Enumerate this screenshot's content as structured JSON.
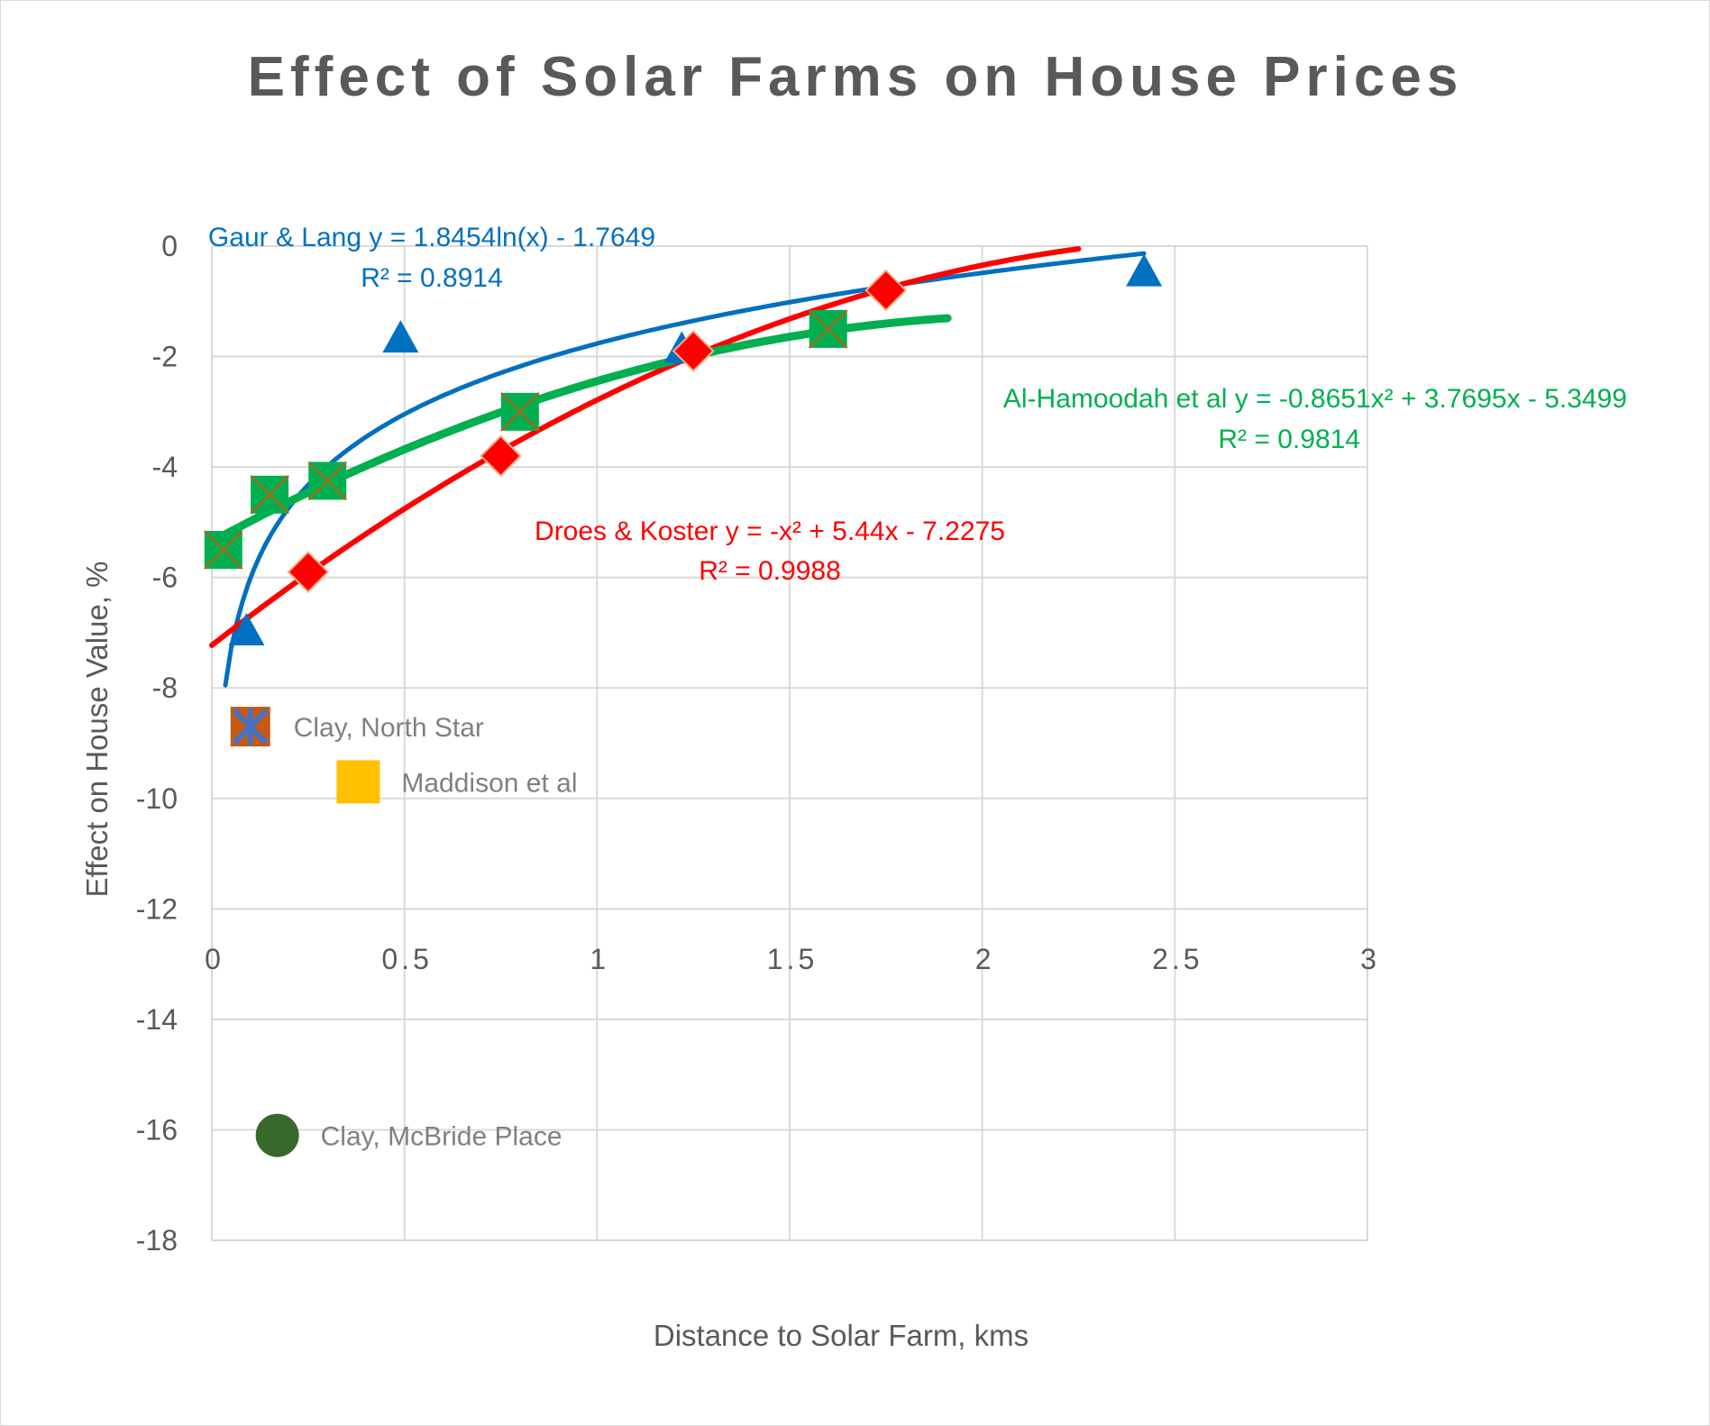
{
  "chart_data": {
    "type": "scatter",
    "title": "Effect of Solar Farms on House Prices",
    "xlabel": "Distance to Solar Farm, kms",
    "ylabel": "Effect on House Value, %",
    "xlim": [
      0,
      3
    ],
    "ylim": [
      -18,
      0
    ],
    "x_ticks": [
      "0",
      "0.5",
      "1",
      "1.5",
      "2",
      "2.5",
      "3"
    ],
    "y_ticks": [
      "0",
      "-2",
      "-4",
      "-6",
      "-8",
      "-10",
      "-12",
      "-14",
      "-16",
      "-18"
    ],
    "grid": true,
    "series": [
      {
        "name": "Gaur & Lang",
        "color": "#0070c0",
        "marker": "triangle",
        "points": [
          [
            0.09,
            -7.0
          ],
          [
            0.49,
            -1.7
          ],
          [
            1.22,
            -1.9
          ],
          [
            2.42,
            -0.5
          ]
        ],
        "trendline": {
          "kind": "log",
          "a": 1.8454,
          "b": -1.7649,
          "x_range": [
            0.035,
            2.42
          ],
          "equation": "Gaur & Lang y = 1.8454ln(x) - 1.7649",
          "r2": "R² = 0.8914"
        }
      },
      {
        "name": "Droes & Koster",
        "color": "#ff0000",
        "marker": "diamond",
        "points": [
          [
            0.25,
            -5.9
          ],
          [
            0.75,
            -3.8
          ],
          [
            1.25,
            -1.9
          ],
          [
            1.75,
            -0.8
          ]
        ],
        "trendline": {
          "kind": "poly2",
          "a": -1,
          "b": 5.44,
          "c": -7.2275,
          "x_range": [
            0,
            2.25
          ],
          "equation": "Droes & Koster y = -x² + 5.44x - 7.2275",
          "r2": "R² = 0.9988"
        }
      },
      {
        "name": "Al-Hamoodah et al",
        "color": "#00b050",
        "marker": "square-x",
        "points": [
          [
            0.03,
            -5.5
          ],
          [
            0.15,
            -4.5
          ],
          [
            0.3,
            -4.25
          ],
          [
            0.8,
            -3.0
          ],
          [
            1.6,
            -1.5
          ]
        ],
        "trendline": {
          "kind": "poly2",
          "a": -0.8651,
          "b": 3.7695,
          "c": -5.3499,
          "x_range": [
            0,
            1.91
          ],
          "equation": "Al-Hamoodah et al y = -0.8651x² + 3.7695x - 5.3499",
          "r2": "R² = 0.9814"
        }
      },
      {
        "name": "Clay, North Star",
        "color": "#c55a11",
        "marker": "square-star",
        "points": [
          [
            0.1,
            -8.7
          ]
        ],
        "label": "Clay, North Star"
      },
      {
        "name": "Maddison et al",
        "color": "#ffc000",
        "marker": "square",
        "points": [
          [
            0.38,
            -9.7
          ]
        ],
        "label": "Maddison et al"
      },
      {
        "name": "Clay, McBride Place",
        "color": "#38682b",
        "marker": "circle",
        "points": [
          [
            0.17,
            -16.1
          ]
        ],
        "label": "Clay, McBride Place"
      }
    ]
  }
}
